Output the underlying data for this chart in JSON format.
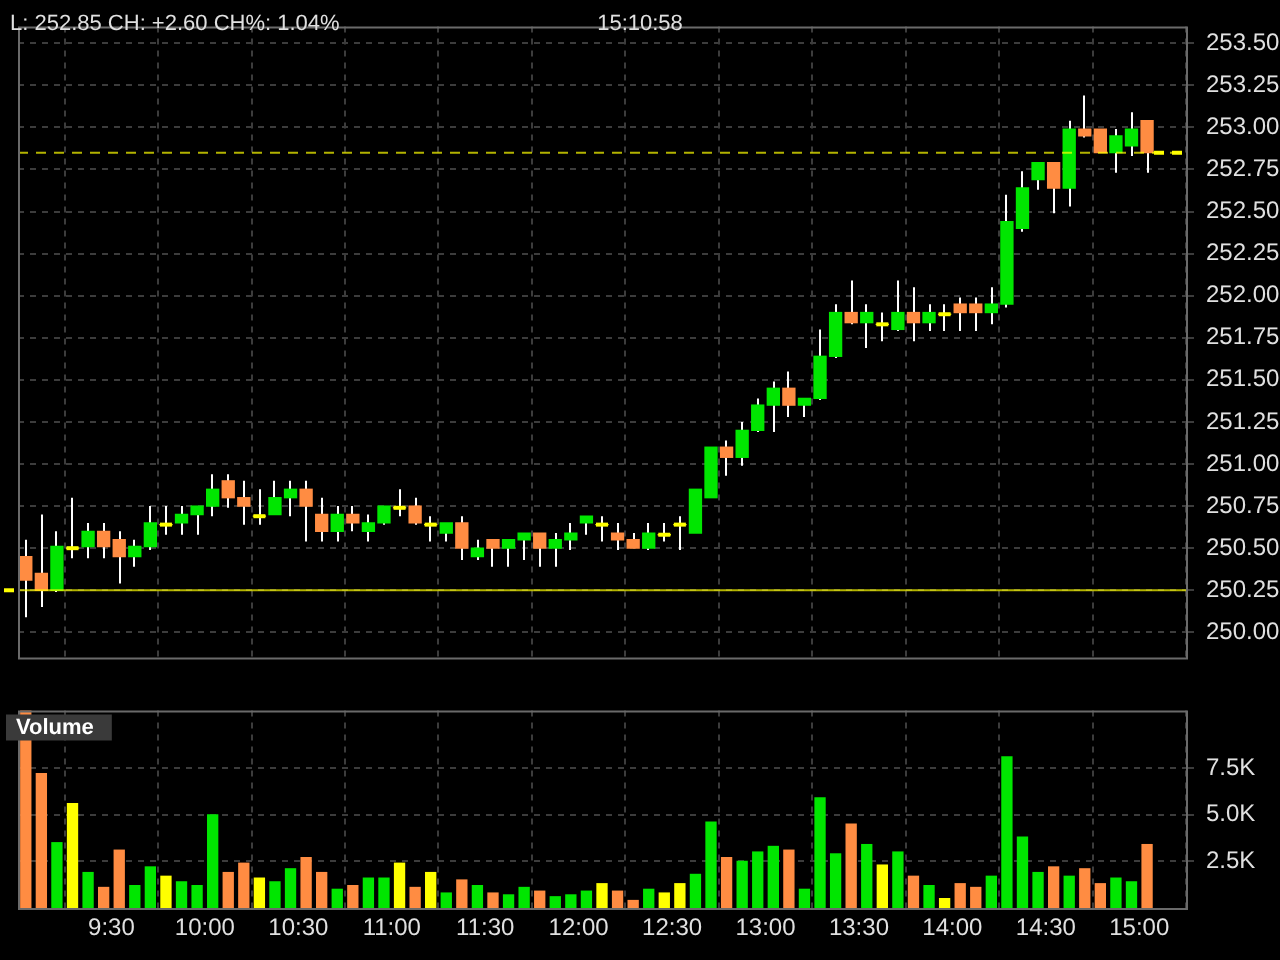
{
  "chart_data": [
    {
      "type": "candlestick",
      "annotations": [
        "L: 252.85 CH: +2.60 CH%: 1.04%",
        "15:10:58"
      ],
      "x": [
        9.0417,
        9.125,
        9.2083,
        9.2917,
        9.375,
        9.4583,
        9.5417,
        9.625,
        9.7083,
        9.7917,
        9.875,
        9.9583,
        10.0417,
        10.125,
        10.2083,
        10.2917,
        10.375,
        10.4583,
        10.5417,
        10.625,
        10.7083,
        10.7917,
        10.875,
        10.9583,
        11.0417,
        11.125,
        11.2083,
        11.2917,
        11.375,
        11.4583,
        11.5417,
        11.625,
        11.7083,
        11.7917,
        11.875,
        11.9583,
        12.0417,
        12.125,
        12.2083,
        12.2917,
        12.375,
        12.4583,
        12.5417,
        12.625,
        12.7083,
        12.7917,
        12.875,
        12.9583,
        13.0417,
        13.125,
        13.2083,
        13.2917,
        13.375,
        13.4583,
        13.5417,
        13.625,
        13.7083,
        13.7917,
        13.875,
        13.9583,
        14.0417,
        14.125,
        14.2083,
        14.2917,
        14.375,
        14.4583,
        14.5417,
        14.625,
        14.7083,
        14.7917,
        14.875,
        14.9583,
        15.0417
      ],
      "ohlc": [
        [
          250.45,
          250.55,
          250.09,
          250.31
        ],
        [
          250.35,
          250.7,
          250.15,
          250.25
        ],
        [
          250.25,
          250.6,
          250.24,
          250.51
        ],
        [
          250.5,
          250.8,
          250.44,
          250.5
        ],
        [
          250.51,
          250.65,
          250.44,
          250.6
        ],
        [
          250.6,
          250.65,
          250.44,
          250.51
        ],
        [
          250.55,
          250.6,
          250.29,
          250.45
        ],
        [
          250.45,
          250.55,
          250.39,
          250.51
        ],
        [
          250.51,
          250.75,
          250.49,
          250.65
        ],
        [
          250.64,
          250.75,
          250.58,
          250.64
        ],
        [
          250.65,
          250.75,
          250.58,
          250.7
        ],
        [
          250.7,
          250.75,
          250.58,
          250.75
        ],
        [
          250.75,
          250.94,
          250.69,
          250.85
        ],
        [
          250.9,
          250.94,
          250.74,
          250.8
        ],
        [
          250.8,
          250.9,
          250.64,
          250.75
        ],
        [
          250.69,
          250.85,
          250.64,
          250.69
        ],
        [
          250.7,
          250.9,
          250.7,
          250.8
        ],
        [
          250.8,
          250.9,
          250.69,
          250.85
        ],
        [
          250.85,
          250.9,
          250.54,
          250.75
        ],
        [
          250.7,
          250.8,
          250.54,
          250.6
        ],
        [
          250.6,
          250.75,
          250.54,
          250.7
        ],
        [
          250.7,
          250.75,
          250.6,
          250.65
        ],
        [
          250.6,
          250.7,
          250.54,
          250.65
        ],
        [
          250.65,
          250.75,
          250.64,
          250.75
        ],
        [
          250.74,
          250.85,
          250.69,
          250.74
        ],
        [
          250.75,
          250.8,
          250.64,
          250.65
        ],
        [
          250.64,
          250.69,
          250.54,
          250.64
        ],
        [
          250.59,
          250.65,
          250.54,
          250.65
        ],
        [
          250.65,
          250.69,
          250.43,
          250.5
        ],
        [
          250.45,
          250.55,
          250.43,
          250.5
        ],
        [
          250.55,
          250.55,
          250.39,
          250.5
        ],
        [
          250.5,
          250.55,
          250.39,
          250.55
        ],
        [
          250.55,
          250.59,
          250.43,
          250.59
        ],
        [
          250.59,
          250.59,
          250.39,
          250.5
        ],
        [
          250.5,
          250.59,
          250.39,
          250.55
        ],
        [
          250.55,
          250.65,
          250.49,
          250.59
        ],
        [
          250.65,
          250.69,
          250.58,
          250.69
        ],
        [
          250.64,
          250.69,
          250.54,
          250.64
        ],
        [
          250.59,
          250.65,
          250.49,
          250.55
        ],
        [
          250.55,
          250.59,
          250.5,
          250.5
        ],
        [
          250.5,
          250.65,
          250.49,
          250.59
        ],
        [
          250.58,
          250.65,
          250.54,
          250.58
        ],
        [
          250.64,
          250.69,
          250.49,
          250.64
        ],
        [
          250.59,
          250.85,
          250.59,
          250.85
        ],
        [
          250.8,
          251.1,
          250.8,
          251.1
        ],
        [
          251.1,
          251.14,
          250.93,
          251.04
        ],
        [
          251.04,
          251.25,
          250.99,
          251.2
        ],
        [
          251.2,
          251.39,
          251.19,
          251.35
        ],
        [
          251.35,
          251.49,
          251.19,
          251.45
        ],
        [
          251.45,
          251.55,
          251.28,
          251.35
        ],
        [
          251.35,
          251.39,
          251.28,
          251.39
        ],
        [
          251.39,
          251.8,
          251.38,
          251.64
        ],
        [
          251.64,
          251.95,
          251.63,
          251.9
        ],
        [
          251.9,
          252.09,
          251.83,
          251.84
        ],
        [
          251.84,
          251.95,
          251.69,
          251.9
        ],
        [
          251.83,
          251.9,
          251.73,
          251.83
        ],
        [
          251.8,
          252.09,
          251.79,
          251.9
        ],
        [
          251.9,
          252.05,
          251.73,
          251.84
        ],
        [
          251.84,
          251.95,
          251.79,
          251.9
        ],
        [
          251.89,
          251.95,
          251.79,
          251.89
        ],
        [
          251.95,
          251.99,
          251.79,
          251.9
        ],
        [
          251.95,
          251.99,
          251.79,
          251.9
        ],
        [
          251.9,
          252.05,
          251.83,
          251.95
        ],
        [
          251.95,
          252.6,
          251.93,
          252.44
        ],
        [
          252.4,
          252.74,
          252.38,
          252.64
        ],
        [
          252.69,
          252.79,
          252.63,
          252.79
        ],
        [
          252.79,
          252.79,
          252.49,
          252.64
        ],
        [
          252.64,
          253.04,
          252.53,
          252.99
        ],
        [
          252.99,
          253.19,
          252.94,
          252.95
        ],
        [
          252.99,
          252.99,
          252.85,
          252.85
        ],
        [
          252.85,
          252.99,
          252.73,
          252.95
        ],
        [
          252.89,
          253.09,
          252.83,
          252.99
        ],
        [
          253.04,
          253.04,
          252.73,
          252.85
        ]
      ],
      "colors": [
        "#ff8c42",
        "#ff8c42",
        "#00e600",
        "#ffff00",
        "#00e600",
        "#ff8c42",
        "#ff8c42",
        "#00e600",
        "#00e600",
        "#ffff00",
        "#00e600",
        "#00e600",
        "#00e600",
        "#ff8c42",
        "#ff8c42",
        "#ffff00",
        "#00e600",
        "#00e600",
        "#ff8c42",
        "#ff8c42",
        "#00e600",
        "#ff8c42",
        "#00e600",
        "#00e600",
        "#ffff00",
        "#ff8c42",
        "#ffff00",
        "#00e600",
        "#ff8c42",
        "#00e600",
        "#ff8c42",
        "#00e600",
        "#00e600",
        "#ff8c42",
        "#00e600",
        "#00e600",
        "#00e600",
        "#ffff00",
        "#ff8c42",
        "#ff8c42",
        "#00e600",
        "#ffff00",
        "#ffff00",
        "#00e600",
        "#00e600",
        "#ff8c42",
        "#00e600",
        "#00e600",
        "#00e600",
        "#ff8c42",
        "#00e600",
        "#00e600",
        "#00e600",
        "#ff8c42",
        "#00e600",
        "#ffff00",
        "#00e600",
        "#ff8c42",
        "#00e600",
        "#ffff00",
        "#ff8c42",
        "#ff8c42",
        "#00e600",
        "#00e600",
        "#00e600",
        "#00e600",
        "#ff8c42",
        "#00e600",
        "#ff8c42",
        "#ff8c42",
        "#00e600",
        "#00e600",
        "#ff8c42"
      ],
      "ref_lines": [
        {
          "axis": "y",
          "value": 250.25,
          "color": "#ffff00"
        },
        {
          "axis": "y",
          "value": 252.85,
          "color": "#ffff00",
          "line_style": "dashed"
        }
      ],
      "xlim": [
        9.0,
        15.25
      ],
      "xticks": [
        {
          "value": 9.5,
          "label": null
        },
        {
          "value": 10,
          "label": null
        },
        {
          "value": 10.5,
          "label": null
        },
        {
          "value": 11,
          "label": null
        },
        {
          "value": 11.5,
          "label": null
        },
        {
          "value": 12,
          "label": null
        },
        {
          "value": 12.5,
          "label": null
        },
        {
          "value": 13,
          "label": null
        },
        {
          "value": 13.5,
          "label": null
        },
        {
          "value": 14,
          "label": null
        },
        {
          "value": 14.5,
          "label": null
        },
        {
          "value": 15,
          "label": null
        }
      ],
      "ylim": [
        249.85,
        253.6
      ],
      "yticks": [
        {
          "value": 250,
          "label": "250.00"
        },
        {
          "value": 250.25,
          "label": "250.25"
        },
        {
          "value": 250.5,
          "label": "250.50"
        },
        {
          "value": 250.75,
          "label": "250.75"
        },
        {
          "value": 251,
          "label": "251.00"
        },
        {
          "value": 251.25,
          "label": "251.25"
        },
        {
          "value": 251.5,
          "label": "251.50"
        },
        {
          "value": 251.75,
          "label": "251.75"
        },
        {
          "value": 252,
          "label": "252.00"
        },
        {
          "value": 252.25,
          "label": "252.25"
        },
        {
          "value": 252.5,
          "label": "252.50"
        },
        {
          "value": 252.75,
          "label": "252.75"
        },
        {
          "value": 253,
          "label": "253.00"
        },
        {
          "value": 253.25,
          "label": "253.25"
        },
        {
          "value": 253.5,
          "label": "253.50"
        }
      ],
      "grid": true,
      "tick_labels": "y"
    },
    {
      "type": "bar",
      "title": "Volume",
      "x": [
        9.0417,
        9.125,
        9.2083,
        9.2917,
        9.375,
        9.4583,
        9.5417,
        9.625,
        9.7083,
        9.7917,
        9.875,
        9.9583,
        10.0417,
        10.125,
        10.2083,
        10.2917,
        10.375,
        10.4583,
        10.5417,
        10.625,
        10.7083,
        10.7917,
        10.875,
        10.9583,
        11.0417,
        11.125,
        11.2083,
        11.2917,
        11.375,
        11.4583,
        11.5417,
        11.625,
        11.7083,
        11.7917,
        11.875,
        11.9583,
        12.0417,
        12.125,
        12.2083,
        12.2917,
        12.375,
        12.4583,
        12.5417,
        12.625,
        12.7083,
        12.7917,
        12.875,
        12.9583,
        13.0417,
        13.125,
        13.2083,
        13.2917,
        13.375,
        13.4583,
        13.5417,
        13.625,
        13.7083,
        13.7917,
        13.875,
        13.9583,
        14.0417,
        14.125,
        14.2083,
        14.2917,
        14.375,
        14.4583,
        14.5417,
        14.625,
        14.7083,
        14.7917,
        14.875,
        14.9583,
        15.0417
      ],
      "values": [
        10.6,
        7.2,
        3.5,
        5.6,
        1.9,
        1.1,
        3.1,
        1.2,
        2.2,
        1.7,
        1.4,
        1.2,
        5.0,
        1.9,
        2.4,
        1.6,
        1.4,
        2.1,
        2.7,
        1.9,
        1.0,
        1.2,
        1.6,
        1.6,
        2.4,
        1.1,
        1.9,
        0.8,
        1.5,
        1.2,
        0.8,
        0.7,
        1.1,
        0.9,
        0.6,
        0.7,
        0.9,
        1.3,
        0.9,
        0.4,
        1.0,
        0.8,
        1.3,
        1.8,
        4.6,
        2.7,
        2.5,
        3.0,
        3.3,
        3.1,
        1.0,
        5.9,
        2.9,
        4.5,
        3.4,
        2.3,
        3.0,
        1.7,
        1.2,
        0.5,
        1.3,
        1.1,
        1.7,
        8.1,
        3.8,
        1.9,
        2.2,
        1.7,
        2.1,
        1.3,
        1.6,
        1.4,
        3.4
      ],
      "colors": [
        "#ff8c42",
        "#ff8c42",
        "#00e600",
        "#ffff00",
        "#00e600",
        "#ff8c42",
        "#ff8c42",
        "#00e600",
        "#00e600",
        "#ffff00",
        "#00e600",
        "#00e600",
        "#00e600",
        "#ff8c42",
        "#ff8c42",
        "#ffff00",
        "#00e600",
        "#00e600",
        "#ff8c42",
        "#ff8c42",
        "#00e600",
        "#ff8c42",
        "#00e600",
        "#00e600",
        "#ffff00",
        "#ff8c42",
        "#ffff00",
        "#00e600",
        "#ff8c42",
        "#00e600",
        "#ff8c42",
        "#00e600",
        "#00e600",
        "#ff8c42",
        "#00e600",
        "#00e600",
        "#00e600",
        "#ffff00",
        "#ff8c42",
        "#ff8c42",
        "#00e600",
        "#ffff00",
        "#ffff00",
        "#00e600",
        "#00e600",
        "#ff8c42",
        "#00e600",
        "#00e600",
        "#00e600",
        "#ff8c42",
        "#00e600",
        "#00e600",
        "#00e600",
        "#ff8c42",
        "#00e600",
        "#ffff00",
        "#00e600",
        "#ff8c42",
        "#00e600",
        "#ffff00",
        "#ff8c42",
        "#ff8c42",
        "#00e600",
        "#00e600",
        "#00e600",
        "#00e600",
        "#ff8c42",
        "#00e600",
        "#ff8c42",
        "#ff8c42",
        "#00e600",
        "#00e600",
        "#ff8c42"
      ],
      "xlim": [
        9.0,
        15.25
      ],
      "xticks": [
        {
          "value": 9.5,
          "label": "9:30"
        },
        {
          "value": 10,
          "label": "10:00"
        },
        {
          "value": 10.5,
          "label": "10:30"
        },
        {
          "value": 11,
          "label": "11:00"
        },
        {
          "value": 11.5,
          "label": "11:30"
        },
        {
          "value": 12,
          "label": "12:00"
        },
        {
          "value": 12.5,
          "label": "12:30"
        },
        {
          "value": 13,
          "label": "13:00"
        },
        {
          "value": 13.5,
          "label": "13:30"
        },
        {
          "value": 14,
          "label": "14:00"
        },
        {
          "value": 14.5,
          "label": "14:30"
        },
        {
          "value": 15,
          "label": "15:00"
        }
      ],
      "ylim": [
        0,
        10.6
      ],
      "yticks": [
        {
          "value": 2.5,
          "label": "2.5K"
        },
        {
          "value": 5,
          "label": "5.0K"
        },
        {
          "value": 7.5,
          "label": "7.5K"
        }
      ],
      "grid": true
    }
  ]
}
